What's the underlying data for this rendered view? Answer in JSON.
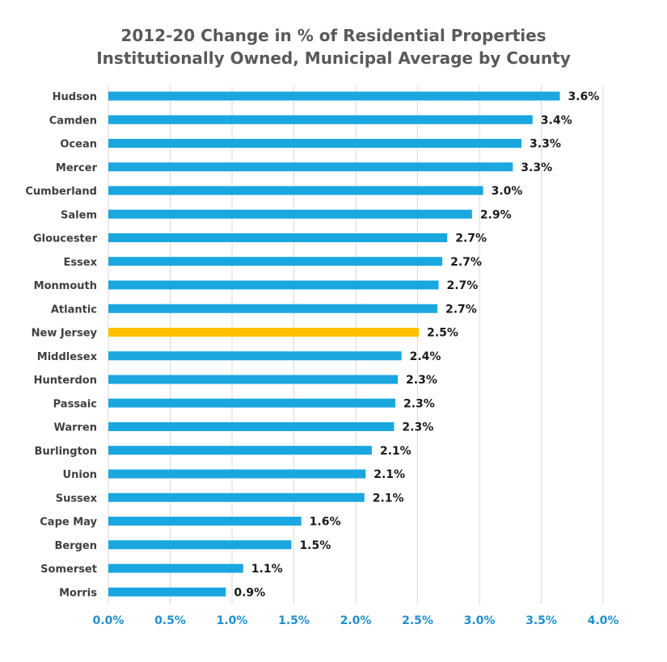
{
  "colors": {
    "bar": "#1aa7e0",
    "highlight": "#ffc000",
    "grid": "#d9d9d9",
    "axis_text": "#1f8fcf",
    "label_text": "#3f3f3f",
    "value_text": "#1a1a1a"
  },
  "chart_data": {
    "type": "bar",
    "orientation": "horizontal",
    "title": [
      "2012-20 Change in % of Residential Properties",
      "Institutionally Owned, Municipal Average by County"
    ],
    "categories": [
      "Hudson",
      "Camden",
      "Ocean",
      "Mercer",
      "Cumberland",
      "Salem",
      "Gloucester",
      "Essex",
      "Monmouth",
      "Atlantic",
      "New Jersey",
      "Middlesex",
      "Hunterdon",
      "Passaic",
      "Warren",
      "Burlington",
      "Union",
      "Sussex",
      "Cape May",
      "Bergen",
      "Somerset",
      "Morris"
    ],
    "values": [
      3.65,
      3.43,
      3.34,
      3.27,
      3.03,
      2.94,
      2.74,
      2.7,
      2.67,
      2.66,
      2.51,
      2.37,
      2.34,
      2.32,
      2.31,
      2.13,
      2.08,
      2.07,
      1.56,
      1.48,
      1.09,
      0.95
    ],
    "value_labels": [
      "3.6%",
      "3.4%",
      "3.3%",
      "3.3%",
      "3.0%",
      "2.9%",
      "2.7%",
      "2.7%",
      "2.7%",
      "2.7%",
      "2.5%",
      "2.4%",
      "2.3%",
      "2.3%",
      "2.3%",
      "2.1%",
      "2.1%",
      "2.1%",
      "1.6%",
      "1.5%",
      "1.1%",
      "0.9%"
    ],
    "highlight_category": "New Jersey",
    "xlim": [
      0,
      4.0
    ],
    "x_ticks": [
      0,
      0.5,
      1.0,
      1.5,
      2.0,
      2.5,
      3.0,
      3.5,
      4.0
    ],
    "x_tick_labels": [
      "0.0%",
      "0.5%",
      "1.0%",
      "1.5%",
      "2.0%",
      "2.5%",
      "3.0%",
      "3.5%",
      "4.0%"
    ],
    "grid": true,
    "xlabel": "",
    "ylabel": ""
  }
}
